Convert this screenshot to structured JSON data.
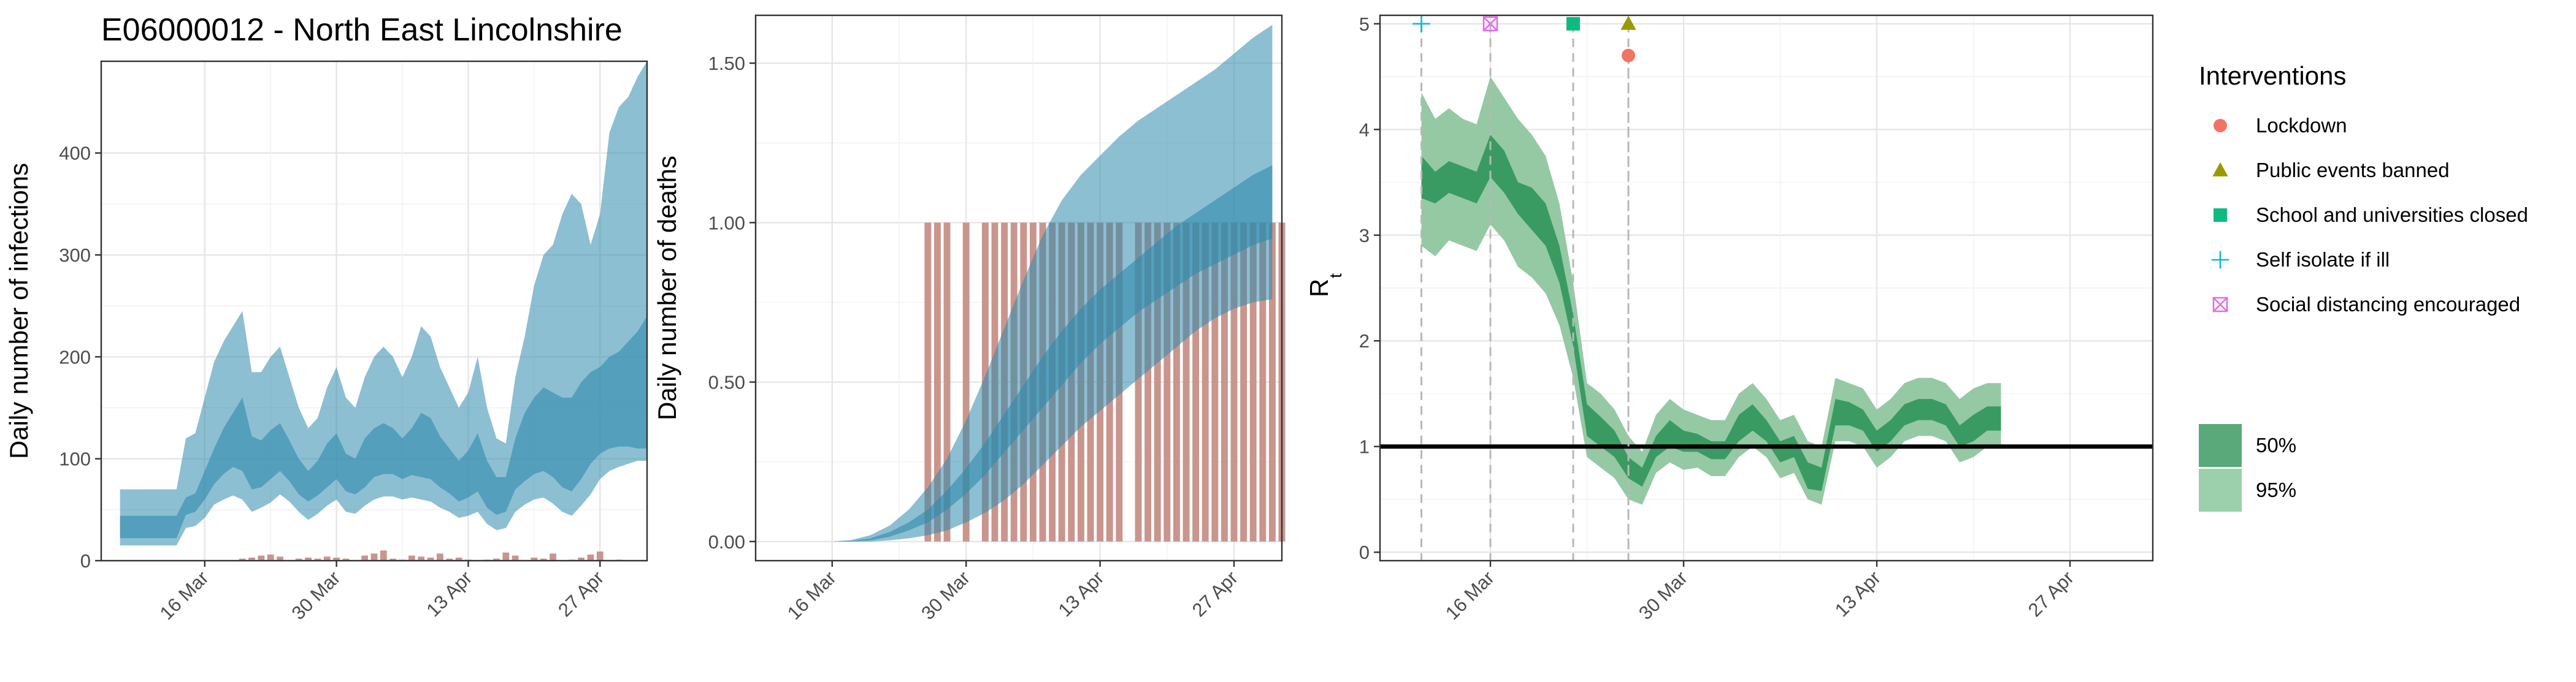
{
  "chart_data": [
    {
      "type": "area",
      "title": "E06000012 - North East Lincolnshire",
      "xlabel": "",
      "ylabel": "Daily number of infections",
      "x_ticks": [
        "16 Mar",
        "30 Mar",
        "13 Apr",
        "27 Apr"
      ],
      "x_tick_days": [
        15,
        29,
        43,
        57
      ],
      "y_ticks": [
        0,
        100,
        200,
        300,
        400
      ],
      "xlim_days": [
        4,
        62
      ],
      "ylim": [
        0,
        490
      ],
      "x_days": [
        6,
        7,
        8,
        9,
        10,
        11,
        12,
        13,
        14,
        15,
        16,
        17,
        18,
        19,
        20,
        21,
        22,
        23,
        24,
        25,
        26,
        27,
        28,
        29,
        30,
        31,
        32,
        33,
        34,
        35,
        36,
        37,
        38,
        39,
        40,
        41,
        42,
        43,
        44,
        45,
        46,
        47,
        48,
        49,
        50,
        51,
        52,
        53,
        54,
        55,
        56,
        57,
        58,
        59,
        60,
        61,
        62
      ],
      "band95_low": [
        15,
        15,
        15,
        15,
        15,
        15,
        15,
        32,
        34,
        42,
        55,
        60,
        64,
        60,
        48,
        52,
        57,
        65,
        58,
        48,
        40,
        46,
        54,
        60,
        48,
        46,
        54,
        60,
        63,
        63,
        60,
        62,
        60,
        58,
        52,
        48,
        42,
        44,
        48,
        36,
        30,
        32,
        48,
        55,
        60,
        62,
        56,
        48,
        44,
        54,
        65,
        80,
        88,
        92,
        95,
        98,
        98
      ],
      "band95_high": [
        70,
        70,
        70,
        70,
        70,
        70,
        70,
        120,
        125,
        160,
        195,
        215,
        230,
        245,
        185,
        185,
        200,
        210,
        180,
        150,
        130,
        140,
        170,
        190,
        160,
        150,
        180,
        200,
        210,
        200,
        180,
        200,
        230,
        220,
        190,
        170,
        150,
        165,
        200,
        150,
        120,
        115,
        180,
        220,
        270,
        300,
        310,
        340,
        360,
        350,
        310,
        340,
        420,
        445,
        455,
        475,
        490
      ],
      "band50_low": [
        22,
        22,
        22,
        22,
        22,
        22,
        22,
        45,
        48,
        60,
        75,
        85,
        92,
        88,
        70,
        72,
        80,
        88,
        78,
        65,
        58,
        64,
        72,
        80,
        68,
        65,
        72,
        82,
        85,
        85,
        80,
        84,
        82,
        80,
        72,
        66,
        58,
        62,
        68,
        52,
        45,
        48,
        70,
        78,
        85,
        88,
        82,
        72,
        68,
        80,
        95,
        105,
        110,
        112,
        112,
        110,
        110
      ],
      "band50_high": [
        44,
        44,
        44,
        44,
        44,
        44,
        44,
        62,
        66,
        88,
        110,
        130,
        145,
        160,
        122,
        118,
        128,
        135,
        118,
        100,
        88,
        98,
        115,
        125,
        105,
        100,
        120,
        130,
        135,
        130,
        120,
        130,
        145,
        140,
        122,
        110,
        98,
        108,
        125,
        98,
        82,
        82,
        120,
        145,
        160,
        170,
        165,
        160,
        160,
        175,
        185,
        190,
        200,
        205,
        215,
        225,
        240
      ],
      "bars": {
        "x_days": [
          19,
          20,
          21,
          22,
          23,
          25,
          26,
          27,
          28,
          29,
          30,
          32,
          33,
          34,
          35,
          36,
          37,
          38,
          39,
          40,
          41,
          42,
          43,
          45,
          46,
          47,
          48,
          50,
          51,
          52,
          54,
          55,
          56,
          57,
          59
        ],
        "values": [
          2,
          3,
          5,
          6,
          4,
          2,
          3,
          2,
          4,
          3,
          2,
          5,
          7,
          10,
          2,
          1,
          5,
          4,
          3,
          7,
          2,
          3,
          1,
          1,
          2,
          8,
          5,
          3,
          2,
          7,
          1,
          3,
          6,
          9,
          1
        ]
      },
      "colors": {
        "band": "#2f8bad",
        "bars": "#c9958c"
      }
    },
    {
      "type": "area",
      "title": "",
      "xlabel": "",
      "ylabel": "Daily number of deaths",
      "x_ticks": [
        "16 Mar",
        "30 Mar",
        "13 Apr",
        "27 Apr"
      ],
      "x_tick_days": [
        15,
        29,
        43,
        57
      ],
      "y_ticks": [
        "0.00",
        "0.50",
        "1.00",
        "1.50"
      ],
      "y_tick_values": [
        0,
        0.5,
        1.0,
        1.5
      ],
      "xlim_days": [
        7,
        62
      ],
      "ylim": [
        -0.06,
        1.65
      ],
      "x_days": [
        15,
        17,
        19,
        21,
        23,
        25,
        27,
        29,
        31,
        33,
        35,
        37,
        39,
        41,
        43,
        45,
        47,
        49,
        51,
        53,
        55,
        57,
        59,
        61
      ],
      "band95_low": [
        0,
        0,
        0,
        0.004,
        0.01,
        0.02,
        0.035,
        0.06,
        0.09,
        0.13,
        0.18,
        0.24,
        0.3,
        0.36,
        0.41,
        0.46,
        0.51,
        0.56,
        0.61,
        0.66,
        0.7,
        0.73,
        0.75,
        0.76
      ],
      "band95_high": [
        0,
        0.005,
        0.02,
        0.05,
        0.1,
        0.17,
        0.26,
        0.38,
        0.52,
        0.67,
        0.82,
        0.96,
        1.07,
        1.15,
        1.21,
        1.27,
        1.32,
        1.36,
        1.4,
        1.44,
        1.48,
        1.53,
        1.58,
        1.62
      ],
      "band50_low": [
        0,
        0,
        0.004,
        0.015,
        0.035,
        0.06,
        0.1,
        0.15,
        0.21,
        0.28,
        0.35,
        0.42,
        0.49,
        0.56,
        0.62,
        0.67,
        0.72,
        0.76,
        0.8,
        0.84,
        0.87,
        0.9,
        0.93,
        0.95
      ],
      "band50_high": [
        0,
        0.002,
        0.01,
        0.03,
        0.06,
        0.1,
        0.16,
        0.23,
        0.31,
        0.4,
        0.49,
        0.58,
        0.66,
        0.73,
        0.79,
        0.84,
        0.89,
        0.94,
        0.99,
        1.03,
        1.07,
        1.11,
        1.15,
        1.18
      ],
      "bars": {
        "x_days": [
          25,
          26,
          27,
          29,
          31,
          32,
          33,
          34,
          35,
          36,
          37,
          38,
          39,
          40,
          41,
          42,
          43,
          44,
          45,
          47,
          48,
          49,
          50,
          51,
          52,
          53,
          54,
          55,
          56,
          57,
          58,
          59,
          60,
          61,
          62
        ],
        "values": [
          1,
          1,
          1,
          1,
          1,
          1,
          1,
          1,
          1,
          1,
          1,
          1,
          1,
          1,
          1,
          1,
          1,
          1,
          1,
          1,
          1,
          1,
          1,
          1,
          1,
          1,
          1,
          1,
          1,
          1,
          1,
          1,
          1,
          1,
          1
        ]
      },
      "colors": {
        "band": "#2f8bad",
        "bars": "#c9958c"
      }
    },
    {
      "type": "area",
      "title": "",
      "xlabel": "",
      "ylabel": "R",
      "ylabel_subscript": "t",
      "x_ticks": [
        "16 Mar",
        "30 Mar",
        "13 Apr",
        "27 Apr"
      ],
      "x_tick_days": [
        15,
        29,
        43,
        57
      ],
      "y_ticks": [
        0,
        1,
        2,
        3,
        4,
        5
      ],
      "xlim_days": [
        7,
        63
      ],
      "ylim": [
        -0.08,
        5.08
      ],
      "reference_line": 1,
      "x_days": [
        10,
        11,
        12,
        13,
        14,
        15,
        16,
        17,
        18,
        19,
        20,
        21,
        22,
        23,
        24,
        25,
        26,
        27,
        28,
        29,
        30,
        31,
        32,
        33,
        34,
        35,
        36,
        37,
        38,
        39,
        40,
        41,
        42,
        43,
        44,
        45,
        46,
        47,
        48,
        49,
        50,
        51,
        52,
        53,
        54,
        55,
        56,
        57,
        58,
        59,
        60,
        61
      ],
      "band95_low": [
        2.9,
        2.8,
        2.95,
        2.9,
        2.85,
        3.1,
        2.95,
        2.7,
        2.6,
        2.45,
        2.15,
        1.65,
        0.9,
        0.8,
        0.7,
        0.5,
        0.45,
        0.75,
        0.85,
        0.78,
        0.8,
        0.72,
        0.72,
        0.9,
        1.0,
        0.9,
        0.7,
        0.75,
        0.5,
        0.45,
        1.05,
        1.05,
        1.0,
        0.8,
        0.9,
        1.05,
        1.1,
        1.1,
        1.05,
        0.85,
        0.9,
        1.0,
        1.0
      ],
      "band95_high": [
        4.35,
        4.1,
        4.2,
        4.1,
        4.05,
        4.5,
        4.3,
        4.1,
        3.95,
        3.75,
        3.3,
        2.55,
        1.6,
        1.5,
        1.35,
        1.1,
        0.95,
        1.3,
        1.45,
        1.35,
        1.3,
        1.25,
        1.25,
        1.5,
        1.6,
        1.45,
        1.25,
        1.3,
        1.05,
        1.0,
        1.65,
        1.6,
        1.55,
        1.35,
        1.45,
        1.6,
        1.65,
        1.65,
        1.6,
        1.45,
        1.55,
        1.6,
        1.6
      ],
      "band50_low": [
        3.35,
        3.3,
        3.4,
        3.35,
        3.3,
        3.55,
        3.4,
        3.2,
        3.05,
        2.9,
        2.55,
        1.95,
        1.1,
        1.0,
        0.9,
        0.7,
        0.62,
        0.9,
        1.0,
        0.95,
        0.95,
        0.88,
        0.88,
        1.05,
        1.15,
        1.05,
        0.85,
        0.9,
        0.6,
        0.58,
        1.2,
        1.2,
        1.15,
        0.95,
        1.05,
        1.2,
        1.25,
        1.25,
        1.2,
        1.0,
        1.05,
        1.15,
        1.15
      ],
      "band50_high": [
        3.75,
        3.6,
        3.7,
        3.65,
        3.6,
        3.95,
        3.8,
        3.5,
        3.45,
        3.3,
        2.9,
        2.25,
        1.4,
        1.28,
        1.15,
        0.9,
        0.8,
        1.1,
        1.25,
        1.15,
        1.12,
        1.05,
        1.05,
        1.3,
        1.4,
        1.25,
        1.05,
        1.1,
        0.85,
        0.8,
        1.45,
        1.42,
        1.35,
        1.15,
        1.25,
        1.4,
        1.45,
        1.45,
        1.4,
        1.2,
        1.3,
        1.38,
        1.38
      ],
      "x_days_band": [
        10,
        11,
        12,
        13,
        14,
        15,
        16,
        17,
        18,
        19,
        20,
        21,
        22,
        23,
        24,
        25,
        26,
        27,
        28,
        29,
        30,
        31,
        32,
        33,
        34,
        35,
        36,
        37,
        38,
        39,
        40,
        41,
        42,
        43,
        44,
        45,
        46,
        47,
        48,
        49,
        50,
        51,
        52
      ],
      "interventions": [
        {
          "name": "Self isolate if ill",
          "day": 10,
          "value": 5.0,
          "shape": "plus",
          "color": "#12b6d6"
        },
        {
          "name": "Social distancing encouraged",
          "day": 15,
          "value": 5.0,
          "shape": "boxx",
          "color": "#e56ae7"
        },
        {
          "name": "School and universities closed",
          "day": 21,
          "value": 5.0,
          "shape": "square",
          "color": "#0fba80"
        },
        {
          "name": "Public events banned",
          "day": 25,
          "value": 5.0,
          "shape": "triangle",
          "color": "#9a9a00"
        },
        {
          "name": "Lockdown",
          "day": 25,
          "value": 4.7,
          "shape": "circle",
          "color": "#f07466"
        }
      ],
      "colors": {
        "band50": "#3a9b62",
        "band95": "#94c9a4",
        "vline": "#b8b8b8"
      }
    }
  ],
  "legend": {
    "interventions_title": "Interventions",
    "interventions": [
      {
        "label": "Lockdown",
        "shape": "circle",
        "color": "#f07466"
      },
      {
        "label": "Public events banned",
        "shape": "triangle",
        "color": "#9a9a00"
      },
      {
        "label": "School and universities closed",
        "shape": "square",
        "color": "#0fba80"
      },
      {
        "label": "Self isolate if ill",
        "shape": "plus",
        "color": "#12b6d6"
      },
      {
        "label": "Social distancing encouraged",
        "shape": "boxx",
        "color": "#e56ae7"
      }
    ],
    "bands": [
      {
        "label": "50%",
        "color": "#5aa97a"
      },
      {
        "label": "95%",
        "color": "#9ccfab"
      }
    ]
  }
}
